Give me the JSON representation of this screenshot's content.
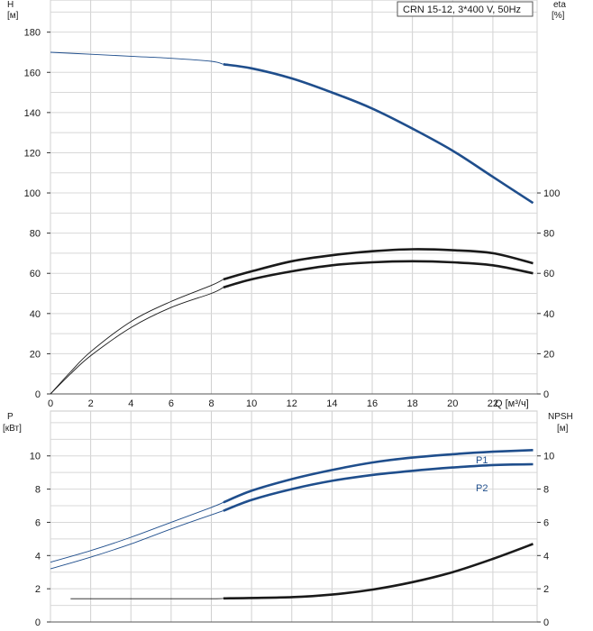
{
  "chart_data": [
    {
      "type": "line",
      "legend": "CRN 15-12, 3*400 V, 50Hz",
      "left_axis_label": "H",
      "left_axis_unit": "[м]",
      "right_axis_label": "eta",
      "right_axis_unit": "[%]",
      "x_axis_label": "Q [м³/ч]",
      "xlim": [
        0,
        24.2
      ],
      "ylim_left": [
        0,
        196
      ],
      "ylim_right": [
        0,
        196
      ],
      "x_ticks": [
        0,
        2,
        4,
        6,
        8,
        10,
        12,
        14,
        16,
        18,
        20,
        22
      ],
      "x_tick_labels": [
        "0",
        "2",
        "4",
        "6",
        "8",
        "10",
        "12",
        "14",
        "16",
        "18",
        "20",
        "22"
      ],
      "x_axis_label_at": 24.2,
      "y_ticks_left": [
        0,
        20,
        40,
        60,
        80,
        100,
        120,
        140,
        160,
        180
      ],
      "y_ticks_right": [
        0,
        20,
        40,
        60,
        80,
        100
      ],
      "grid": true,
      "series": [
        {
          "key": "head",
          "axis": "left",
          "color": "#1f4e8c",
          "operating_range_start": 8.6,
          "x": [
            0,
            2,
            4,
            6,
            8,
            8.6,
            10,
            12,
            14,
            16,
            18,
            20,
            22,
            24
          ],
          "y": [
            170,
            169,
            168,
            167,
            165.5,
            164,
            162,
            157,
            150,
            142,
            132,
            121,
            108,
            95
          ]
        },
        {
          "key": "eta_upper",
          "axis": "right",
          "color": "#1a1a1a",
          "operating_range_start": 8.6,
          "x": [
            0,
            1,
            2,
            4,
            6,
            8,
            8.6,
            10,
            12,
            14,
            16,
            18,
            20,
            22,
            24
          ],
          "y": [
            0,
            11,
            21,
            36,
            46,
            54,
            57,
            61,
            66,
            69,
            71,
            72,
            71.5,
            70,
            65
          ]
        },
        {
          "key": "eta_lower",
          "axis": "right",
          "color": "#1a1a1a",
          "operating_range_start": 8.6,
          "x": [
            0,
            1,
            2,
            4,
            6,
            8,
            8.6,
            10,
            12,
            14,
            16,
            18,
            20,
            22,
            24
          ],
          "y": [
            0,
            10,
            19,
            33,
            43,
            50,
            53,
            57,
            61,
            64,
            65.5,
            66,
            65.5,
            64,
            60
          ]
        }
      ]
    },
    {
      "type": "line",
      "left_axis_label": "P",
      "left_axis_unit": "[кВт]",
      "right_axis_label": "NPSH",
      "right_axis_unit": "[м]",
      "xlim": [
        0,
        24.2
      ],
      "ylim_left": [
        0,
        12.7
      ],
      "ylim_right": [
        0,
        12.7
      ],
      "y_ticks_left": [
        0,
        2,
        4,
        6,
        8,
        10
      ],
      "y_ticks_right": [
        0,
        2,
        4,
        6,
        8,
        10
      ],
      "grid": true,
      "series": [
        {
          "key": "P1",
          "name": "P1",
          "axis": "left",
          "color": "#1f4e8c",
          "operating_range_start": 8.6,
          "x": [
            0,
            2,
            4,
            6,
            8,
            8.6,
            10,
            12,
            14,
            16,
            18,
            20,
            22,
            24
          ],
          "y": [
            3.6,
            4.3,
            5.1,
            6.0,
            6.9,
            7.2,
            7.9,
            8.6,
            9.15,
            9.6,
            9.9,
            10.1,
            10.25,
            10.35
          ]
        },
        {
          "key": "P2",
          "name": "P2",
          "axis": "left",
          "color": "#1f4e8c",
          "operating_range_start": 8.6,
          "x": [
            0,
            2,
            4,
            6,
            8,
            8.6,
            10,
            12,
            14,
            16,
            18,
            20,
            22,
            24
          ],
          "y": [
            3.2,
            3.9,
            4.7,
            5.6,
            6.45,
            6.7,
            7.35,
            8.0,
            8.5,
            8.85,
            9.1,
            9.3,
            9.45,
            9.5
          ]
        },
        {
          "key": "NPSH",
          "axis": "right",
          "color": "#1a1a1a",
          "operating_range_start": 8.6,
          "x": [
            1,
            4,
            8,
            8.6,
            12,
            14,
            16,
            18,
            20,
            22,
            24
          ],
          "y": [
            1.4,
            1.4,
            1.4,
            1.42,
            1.5,
            1.65,
            1.95,
            2.4,
            3.0,
            3.8,
            4.7
          ]
        }
      ]
    }
  ]
}
